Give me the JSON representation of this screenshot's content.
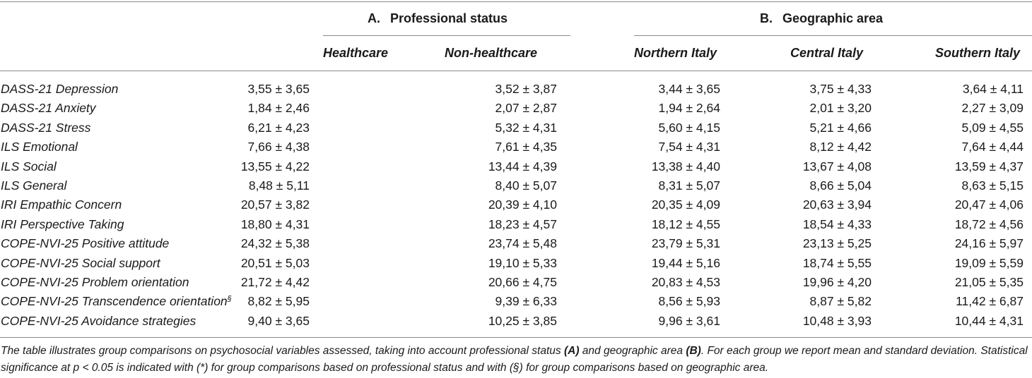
{
  "groups": {
    "a": {
      "letter": "A.",
      "title": "Professional status"
    },
    "b": {
      "letter": "B.",
      "title": "Geographic area"
    }
  },
  "columns": [
    "Healthcare",
    "Non-healthcare",
    "Northern Italy",
    "Central Italy",
    "Southern Italy"
  ],
  "rows": [
    {
      "label": "DASS-21 Depression",
      "sup": "",
      "values": [
        "3,55 ± 3,65",
        "3,52 ± 3,87",
        "3,44 ± 3,65",
        "3,75 ± 4,33",
        "3,64 ± 4,11"
      ]
    },
    {
      "label": "DASS-21 Anxiety",
      "sup": "",
      "values": [
        "1,84 ± 2,46",
        "2,07 ± 2,87",
        "1,94 ± 2,64",
        "2,01 ± 3,20",
        "2,27 ± 3,09"
      ]
    },
    {
      "label": "DASS-21 Stress",
      "sup": "",
      "values": [
        "6,21 ± 4,23",
        "5,32 ± 4,31",
        "5,60 ± 4,15",
        "5,21 ± 4,66",
        "5,09 ± 4,55"
      ]
    },
    {
      "label": "ILS Emotional",
      "sup": "",
      "values": [
        "7,66 ± 4,38",
        "7,61 ± 4,35",
        "7,54 ± 4,31",
        "8,12 ± 4,42",
        "7,64 ± 4,44"
      ]
    },
    {
      "label": "ILS Social",
      "sup": "",
      "values": [
        "13,55 ± 4,22",
        "13,44 ± 4,39",
        "13,38 ± 4,40",
        "13,67 ± 4,08",
        "13,59 ± 4,37"
      ]
    },
    {
      "label": "ILS General",
      "sup": "",
      "values": [
        "8,48 ± 5,11",
        "8,40 ± 5,07",
        "8,31 ± 5,07",
        "8,66 ± 5,04",
        "8,63 ± 5,15"
      ]
    },
    {
      "label": "IRI Empathic Concern",
      "sup": "",
      "values": [
        "20,57 ± 3,82",
        "20,39 ± 4,10",
        "20,35 ± 4,09",
        "20,63 ± 3,94",
        "20,47 ± 4,06"
      ]
    },
    {
      "label": "IRI Perspective Taking",
      "sup": "",
      "values": [
        "18,80 ± 4,31",
        "18,23 ± 4,57",
        "18,12 ± 4,55",
        "18,54 ± 4,33",
        "18,72 ± 4,56"
      ]
    },
    {
      "label": "COPE-NVI-25 Positive attitude",
      "sup": "",
      "values": [
        "24,32 ± 5,38",
        "23,74 ± 5,48",
        "23,79 ± 5,31",
        "23,13 ± 5,25",
        "24,16 ± 5,97"
      ]
    },
    {
      "label": "COPE-NVI-25 Social support",
      "sup": "",
      "values": [
        "20,51 ± 5,03",
        "19,10 ± 5,33",
        "19,44 ± 5,16",
        "18,74 ± 5,55",
        "19,09 ± 5,59"
      ]
    },
    {
      "label": "COPE-NVI-25 Problem orientation",
      "sup": "",
      "values": [
        "21,72 ± 4,42",
        "20,66 ± 4,75",
        "20,83 ± 4,53",
        "19,96 ± 4,20",
        "21,05 ± 5,35"
      ]
    },
    {
      "label": "COPE-NVI-25 Transcendence orientation",
      "sup": "§",
      "values": [
        "8,82 ± 5,95",
        "9,39 ± 6,33",
        "8,56 ± 5,93",
        "8,87 ± 5,82",
        "11,42 ± 6,87"
      ]
    },
    {
      "label": "COPE-NVI-25 Avoidance strategies",
      "sup": "",
      "values": [
        "9,40 ± 3,65",
        "10,25 ± 3,85",
        "9,96 ± 3,61",
        "10,48 ± 3,93",
        "10,44 ± 4,31"
      ]
    }
  ],
  "note": {
    "p1": "The table illustrates group comparisons on psychosocial variables assessed, taking into account professional status ",
    "b1": "(A)",
    "p2": " and geographic area ",
    "b2": "(B)",
    "p3": ". For each group we report mean and standard deviation. Statistical significance at p < 0.05 is indicated with (*) for group comparisons based on professional status and with (§) for group comparisons based on geographic area."
  }
}
